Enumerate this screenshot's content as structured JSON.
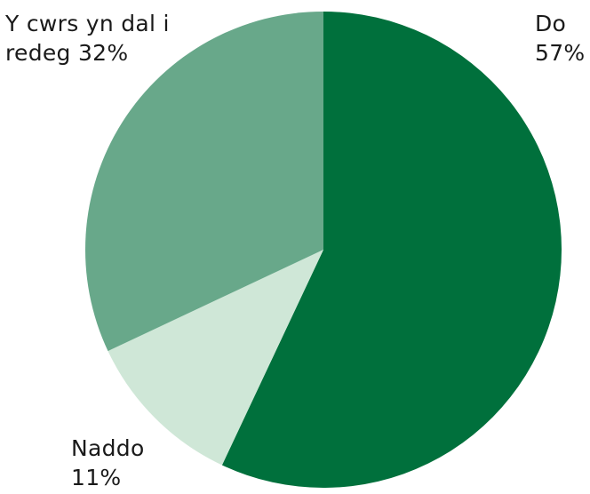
{
  "chart_data": {
    "type": "pie",
    "title": "",
    "start_angle_deg": 0,
    "direction": "clockwise",
    "slices": [
      {
        "label_lines": [
          "Do",
          "57%"
        ],
        "value": 57,
        "color": "#00703c"
      },
      {
        "label_lines": [
          "Naddo",
          "11%"
        ],
        "value": 11,
        "color": "#cfe7d7"
      },
      {
        "label_lines": [
          "Y cwrs yn dal i",
          "redeg 32%"
        ],
        "value": 32,
        "color": "#68a88a"
      }
    ],
    "legend": "none"
  }
}
